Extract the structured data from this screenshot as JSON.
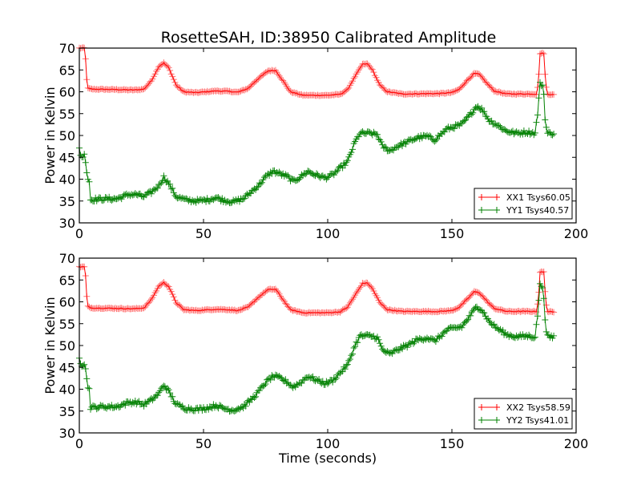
{
  "chart_data": [
    {
      "type": "line",
      "title": "RosetteSAH, ID:38950 Calibrated Amplitude",
      "xlabel": "",
      "ylabel": "Power in Kelvin",
      "xlim": [
        0,
        200
      ],
      "ylim": [
        30,
        70
      ],
      "xticks": [
        "0",
        "50",
        "100",
        "150",
        "200"
      ],
      "yticks": [
        "30",
        "35",
        "40",
        "45",
        "50",
        "55",
        "60",
        "65",
        "70"
      ],
      "grid": false,
      "legend_position": "lower-right",
      "marker": "plus",
      "series": [
        {
          "name": "XX1 Tsys60.05",
          "color": "#ff0000",
          "points": [
            [
              0,
              70
            ],
            [
              2,
              70
            ],
            [
              2.6,
              67
            ],
            [
              3.2,
              60.8
            ],
            [
              5,
              60.6
            ],
            [
              15,
              60.5
            ],
            [
              22,
              60.4
            ],
            [
              26,
              60.6
            ],
            [
              29,
              62.5
            ],
            [
              32,
              65.8
            ],
            [
              34,
              66.6
            ],
            [
              36,
              65.5
            ],
            [
              39,
              61.5
            ],
            [
              42,
              60
            ],
            [
              47,
              59.8
            ],
            [
              55,
              60.2
            ],
            [
              60,
              60.1
            ],
            [
              64,
              59.9
            ],
            [
              68,
              60.8
            ],
            [
              72,
              63
            ],
            [
              76,
              64.8
            ],
            [
              79,
              64.9
            ],
            [
              82,
              62.5
            ],
            [
              85,
              60
            ],
            [
              90,
              59.2
            ],
            [
              100,
              59.2
            ],
            [
              105,
              59.4
            ],
            [
              108,
              60.5
            ],
            [
              111,
              63.5
            ],
            [
              114,
              66.3
            ],
            [
              116,
              66.4
            ],
            [
              118,
              65
            ],
            [
              121,
              61.5
            ],
            [
              124,
              60
            ],
            [
              130,
              59.5
            ],
            [
              145,
              59.6
            ],
            [
              150,
              59.8
            ],
            [
              153,
              60.6
            ],
            [
              156,
              62.5
            ],
            [
              159,
              64.2
            ],
            [
              161,
              64
            ],
            [
              164,
              62
            ],
            [
              167,
              60.2
            ],
            [
              172,
              59.5
            ],
            [
              184,
              59.5
            ],
            [
              184.8,
              62
            ],
            [
              185.5,
              68.8
            ],
            [
              187,
              68.8
            ],
            [
              187.6,
              63
            ],
            [
              188.3,
              59.5
            ],
            [
              191,
              59.3
            ]
          ]
        },
        {
          "name": "YY1 Tsys40.57",
          "color": "#008000",
          "points": [
            [
              0,
              47
            ],
            [
              0.8,
              45
            ],
            [
              2,
              45.5
            ],
            [
              2.6,
              44
            ],
            [
              3.2,
              40.5
            ],
            [
              4,
              39.5
            ],
            [
              4.5,
              35.3
            ],
            [
              10,
              35.5
            ],
            [
              15,
              35.5
            ],
            [
              20,
              36.5
            ],
            [
              23,
              36.5
            ],
            [
              26,
              36
            ],
            [
              29,
              37
            ],
            [
              32,
              38.5
            ],
            [
              34,
              40.5
            ],
            [
              36,
              39
            ],
            [
              39,
              36
            ],
            [
              43,
              35.2
            ],
            [
              48,
              35
            ],
            [
              52,
              35.3
            ],
            [
              55,
              35.8
            ],
            [
              58,
              35.2
            ],
            [
              62,
              34.8
            ],
            [
              66,
              35.5
            ],
            [
              69,
              37
            ],
            [
              72,
              38.5
            ],
            [
              75,
              40.5
            ],
            [
              78,
              41.8
            ],
            [
              81,
              41.2
            ],
            [
              84,
              40.5
            ],
            [
              86,
              39.5
            ],
            [
              89,
              40.5
            ],
            [
              92,
              41.8
            ],
            [
              95,
              41
            ],
            [
              99,
              40.3
            ],
            [
              102,
              41
            ],
            [
              105,
              42.5
            ],
            [
              108,
              44
            ],
            [
              111,
              48.5
            ],
            [
              113,
              50.5
            ],
            [
              117,
              50.5
            ],
            [
              120,
              50.2
            ],
            [
              122,
              47.5
            ],
            [
              125,
              46.5
            ],
            [
              128,
              47.5
            ],
            [
              132,
              48.5
            ],
            [
              136,
              49.5
            ],
            [
              140,
              49.8
            ],
            [
              143,
              49
            ],
            [
              145,
              50
            ],
            [
              148,
              51.5
            ],
            [
              151,
              52
            ],
            [
              154,
              52.5
            ],
            [
              157,
              54.5
            ],
            [
              160,
              56.8
            ],
            [
              162,
              56
            ],
            [
              165,
              53.5
            ],
            [
              168,
              52.5
            ],
            [
              172,
              51
            ],
            [
              176,
              50.5
            ],
            [
              180,
              50.8
            ],
            [
              183.5,
              50.5
            ],
            [
              184.5,
              55
            ],
            [
              185.5,
              61.8
            ],
            [
              186.8,
              61.5
            ],
            [
              187.5,
              54
            ],
            [
              188.3,
              50.5
            ],
            [
              191,
              50.5
            ]
          ]
        }
      ]
    },
    {
      "type": "line",
      "title": "",
      "xlabel": "Time (seconds)",
      "ylabel": "Power in Kelvin",
      "xlim": [
        0,
        200
      ],
      "ylim": [
        30,
        70
      ],
      "xticks": [
        "0",
        "50",
        "100",
        "150",
        "200"
      ],
      "yticks": [
        "30",
        "35",
        "40",
        "45",
        "50",
        "55",
        "60",
        "65",
        "70"
      ],
      "grid": false,
      "legend_position": "lower-right",
      "marker": "plus",
      "series": [
        {
          "name": "XX2 Tsys58.59",
          "color": "#ff0000",
          "points": [
            [
              0,
              68
            ],
            [
              2,
              68
            ],
            [
              2.6,
              65.5
            ],
            [
              3.2,
              59
            ],
            [
              5,
              58.6
            ],
            [
              15,
              58.5
            ],
            [
              22,
              58.4
            ],
            [
              26,
              58.6
            ],
            [
              29,
              60.5
            ],
            [
              32,
              63.6
            ],
            [
              34,
              64.4
            ],
            [
              36,
              63.5
            ],
            [
              39,
              59.8
            ],
            [
              42,
              58.2
            ],
            [
              47,
              58
            ],
            [
              55,
              58.3
            ],
            [
              60,
              58.2
            ],
            [
              64,
              58
            ],
            [
              68,
              58.8
            ],
            [
              72,
              61
            ],
            [
              76,
              62.8
            ],
            [
              79,
              62.9
            ],
            [
              82,
              60.5
            ],
            [
              85,
              58.2
            ],
            [
              90,
              57.5
            ],
            [
              100,
              57.5
            ],
            [
              105,
              57.7
            ],
            [
              108,
              58.8
            ],
            [
              111,
              61.5
            ],
            [
              114,
              64.2
            ],
            [
              116,
              64.3
            ],
            [
              118,
              63
            ],
            [
              121,
              59.8
            ],
            [
              124,
              58.2
            ],
            [
              130,
              57.8
            ],
            [
              145,
              57.8
            ],
            [
              150,
              58
            ],
            [
              153,
              58.8
            ],
            [
              156,
              60.5
            ],
            [
              159,
              62.3
            ],
            [
              161,
              62.1
            ],
            [
              164,
              60.2
            ],
            [
              167,
              58.5
            ],
            [
              172,
              57.8
            ],
            [
              184,
              57.8
            ],
            [
              184.8,
              60.5
            ],
            [
              185.5,
              66.8
            ],
            [
              187,
              66.8
            ],
            [
              187.6,
              61.5
            ],
            [
              188.3,
              57.8
            ],
            [
              191,
              57.6
            ]
          ]
        },
        {
          "name": "YY2 Tsys41.01",
          "color": "#008000",
          "points": [
            [
              0,
              47.5
            ],
            [
              0.8,
              45.5
            ],
            [
              2,
              46
            ],
            [
              2.6,
              44.5
            ],
            [
              3.2,
              41
            ],
            [
              4,
              40
            ],
            [
              4.5,
              35.8
            ],
            [
              10,
              36
            ],
            [
              15,
              36
            ],
            [
              20,
              37
            ],
            [
              23,
              37
            ],
            [
              26,
              36.5
            ],
            [
              29,
              37.5
            ],
            [
              32,
              39
            ],
            [
              34,
              41
            ],
            [
              36,
              39.5
            ],
            [
              39,
              36.5
            ],
            [
              43,
              35.6
            ],
            [
              48,
              35.4
            ],
            [
              52,
              35.8
            ],
            [
              55,
              36.3
            ],
            [
              58,
              35.6
            ],
            [
              62,
              35.2
            ],
            [
              66,
              36
            ],
            [
              69,
              37.5
            ],
            [
              72,
              39.3
            ],
            [
              75,
              41.5
            ],
            [
              78,
              43
            ],
            [
              81,
              42.5
            ],
            [
              84,
              41.5
            ],
            [
              86,
              40.5
            ],
            [
              89,
              41.5
            ],
            [
              92,
              43
            ],
            [
              95,
              42.2
            ],
            [
              99,
              41.3
            ],
            [
              102,
              42
            ],
            [
              105,
              43.8
            ],
            [
              108,
              45.5
            ],
            [
              111,
              50
            ],
            [
              113,
              52.2
            ],
            [
              117,
              52.2
            ],
            [
              120,
              51.8
            ],
            [
              122,
              49
            ],
            [
              125,
              48
            ],
            [
              128,
              49
            ],
            [
              132,
              50
            ],
            [
              136,
              51.3
            ],
            [
              140,
              51.8
            ],
            [
              143,
              51
            ],
            [
              145,
              52
            ],
            [
              148,
              53.5
            ],
            [
              151,
              54
            ],
            [
              154,
              54.3
            ],
            [
              157,
              56.5
            ],
            [
              160,
              59
            ],
            [
              162,
              58.2
            ],
            [
              165,
              55.5
            ],
            [
              168,
              54
            ],
            [
              172,
              52.5
            ],
            [
              176,
              52
            ],
            [
              180,
              52.2
            ],
            [
              183.5,
              52
            ],
            [
              184.5,
              57
            ],
            [
              185.5,
              63.8
            ],
            [
              186.8,
              63.5
            ],
            [
              187.5,
              55.5
            ],
            [
              188.3,
              52
            ],
            [
              191,
              52
            ]
          ]
        }
      ]
    }
  ]
}
